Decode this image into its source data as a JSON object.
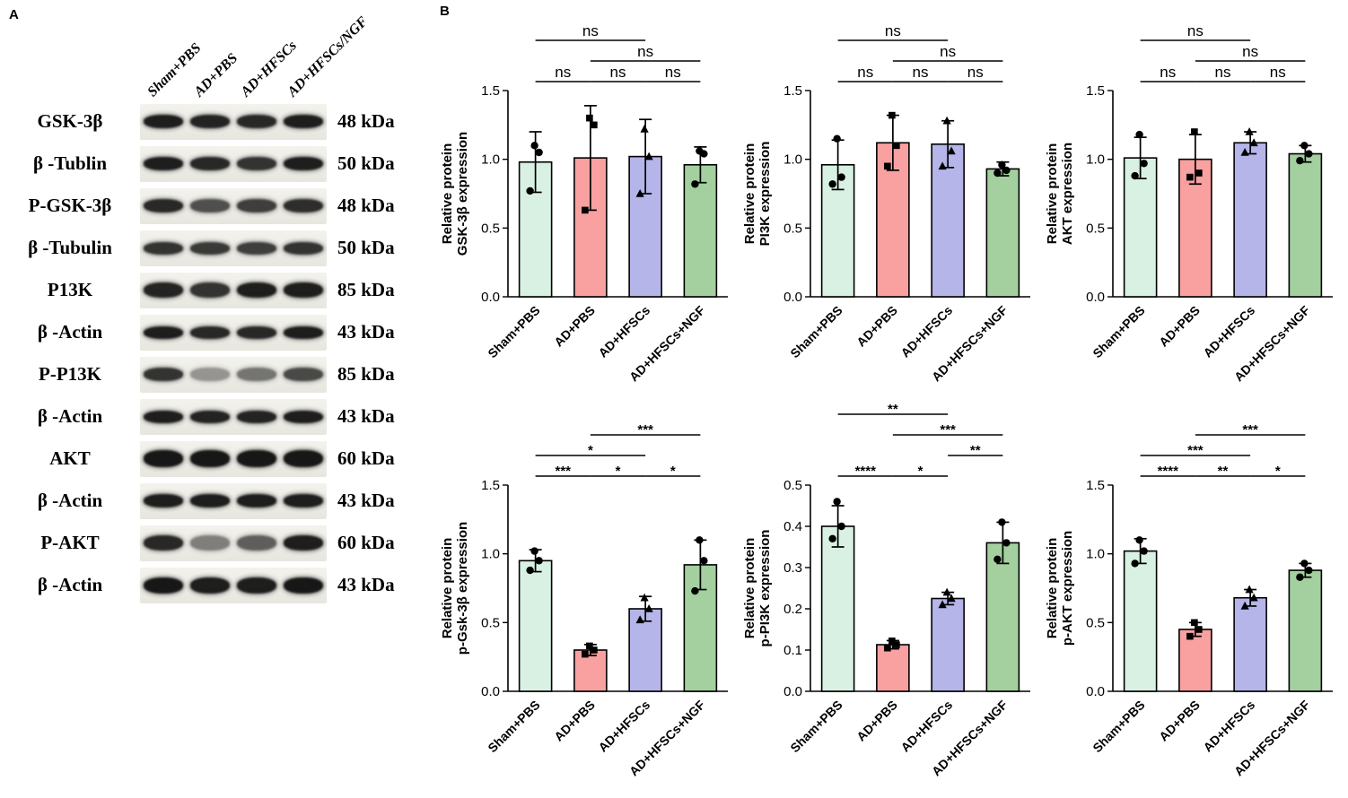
{
  "figure": {
    "panelA_label": "A",
    "panelB_label": "B"
  },
  "panelA": {
    "lane_headers": [
      "Sham+PBS",
      "AD+PBS",
      "AD+HFSCs",
      "AD+HFSCs/NGF"
    ],
    "rows": [
      {
        "protein": "GSK-3β",
        "kda": "48 kDa",
        "band_h": 15,
        "intensities": [
          0.95,
          0.92,
          0.9,
          0.95
        ]
      },
      {
        "protein": "β -Tublin",
        "kda": "50 kDa",
        "band_h": 15,
        "intensities": [
          0.95,
          0.9,
          0.85,
          0.95
        ]
      },
      {
        "protein": "P-GSK-3β",
        "kda": "48 kDa",
        "band_h": 15,
        "intensities": [
          0.9,
          0.72,
          0.8,
          0.88
        ]
      },
      {
        "protein": "β -Tubulin",
        "kda": "50 kDa",
        "band_h": 14,
        "intensities": [
          0.85,
          0.82,
          0.8,
          0.85
        ]
      },
      {
        "protein": "P13K",
        "kda": "85 kDa",
        "band_h": 17,
        "intensities": [
          0.92,
          0.85,
          0.95,
          0.95
        ]
      },
      {
        "protein": "β -Actin",
        "kda": "43 kDa",
        "band_h": 14,
        "intensities": [
          0.95,
          0.9,
          0.9,
          0.95
        ]
      },
      {
        "protein": "P-P13K",
        "kda": "85 kDa",
        "band_h": 15,
        "intensities": [
          0.85,
          0.4,
          0.55,
          0.75
        ]
      },
      {
        "protein": "β -Actin",
        "kda": "43 kDa",
        "band_h": 14,
        "intensities": [
          0.95,
          0.92,
          0.92,
          0.95
        ]
      },
      {
        "protein": "AKT",
        "kda": "60 kDa",
        "band_h": 19,
        "intensities": [
          0.98,
          0.98,
          0.98,
          0.98
        ]
      },
      {
        "protein": "β -Actin",
        "kda": "43 kDa",
        "band_h": 15,
        "intensities": [
          0.95,
          0.95,
          0.95,
          0.95
        ]
      },
      {
        "protein": "P-AKT",
        "kda": "60 kDa",
        "band_h": 17,
        "intensities": [
          0.9,
          0.5,
          0.65,
          0.95
        ]
      },
      {
        "protein": "β -Actin",
        "kda": "43 kDa",
        "band_h": 18,
        "intensities": [
          0.98,
          0.95,
          0.95,
          0.98
        ]
      }
    ]
  },
  "style": {
    "bar_fills": [
      "#d8f1e3",
      "#f9a0a0",
      "#b5b5e9",
      "#a3d09e"
    ],
    "bar_stroke": "#000000",
    "point_color": "#000000",
    "axis_color": "#000000",
    "markers": [
      "circle",
      "square",
      "triangle",
      "circle"
    ]
  },
  "chart_data": [
    {
      "id": "gsk3b-total",
      "type": "bar",
      "ylabel_line1": "Relative protein",
      "ylabel_line2": "GSK-3β expression",
      "ylim": [
        0,
        1.5
      ],
      "yticks": [
        0,
        0.5,
        1,
        1.5
      ],
      "ytick_labels": [
        "0.0",
        "0.5",
        "1.0",
        "1.5"
      ],
      "categories": [
        "Sham+PBS",
        "AD+PBS",
        "AD+HFSCs",
        "AD+HFSCs+NGF"
      ],
      "values": [
        0.98,
        1.01,
        1.02,
        0.96
      ],
      "errors": [
        0.22,
        0.38,
        0.27,
        0.13
      ],
      "points": [
        [
          0.77,
          1.05,
          1.1
        ],
        [
          0.63,
          1.25,
          1.3
        ],
        [
          0.75,
          1.02,
          1.22
        ],
        [
          0.82,
          1.04,
          1.06
        ]
      ],
      "sig": [
        {
          "from": 0,
          "to": 1,
          "label": "ns",
          "level": 1
        },
        {
          "from": 1,
          "to": 2,
          "label": "ns",
          "level": 1
        },
        {
          "from": 2,
          "to": 3,
          "label": "ns",
          "level": 1
        },
        {
          "from": 1,
          "to": 3,
          "label": "ns",
          "level": 2
        },
        {
          "from": 0,
          "to": 2,
          "label": "ns",
          "level": 3
        }
      ]
    },
    {
      "id": "pi3k-total",
      "type": "bar",
      "ylabel_line1": "Relative protein",
      "ylabel_line2": "PI3K expression",
      "ylim": [
        0,
        1.5
      ],
      "yticks": [
        0,
        0.5,
        1,
        1.5
      ],
      "ytick_labels": [
        "0.0",
        "0.5",
        "1.0",
        "1.5"
      ],
      "categories": [
        "Sham+PBS",
        "AD+PBS",
        "AD+HFSCs",
        "AD+HFSCs+NGF"
      ],
      "values": [
        0.96,
        1.12,
        1.11,
        0.93
      ],
      "errors": [
        0.18,
        0.2,
        0.17,
        0.05
      ],
      "points": [
        [
          0.82,
          0.87,
          1.15
        ],
        [
          0.95,
          1.1,
          1.32
        ],
        [
          0.95,
          1.06,
          1.28
        ],
        [
          0.9,
          0.92,
          0.96
        ]
      ],
      "sig": [
        {
          "from": 0,
          "to": 1,
          "label": "ns",
          "level": 1
        },
        {
          "from": 1,
          "to": 2,
          "label": "ns",
          "level": 1
        },
        {
          "from": 2,
          "to": 3,
          "label": "ns",
          "level": 1
        },
        {
          "from": 1,
          "to": 3,
          "label": "ns",
          "level": 2
        },
        {
          "from": 0,
          "to": 2,
          "label": "ns",
          "level": 3
        }
      ]
    },
    {
      "id": "akt-total",
      "type": "bar",
      "ylabel_line1": "Relative protein",
      "ylabel_line2": "AKT expression",
      "ylim": [
        0,
        1.5
      ],
      "yticks": [
        0,
        0.5,
        1,
        1.5
      ],
      "ytick_labels": [
        "0.0",
        "0.5",
        "1.0",
        "1.5"
      ],
      "categories": [
        "Sham+PBS",
        "AD+PBS",
        "AD+HFSCs",
        "AD+HFSCs+NGF"
      ],
      "values": [
        1.01,
        1.0,
        1.12,
        1.04
      ],
      "errors": [
        0.15,
        0.18,
        0.08,
        0.06
      ],
      "points": [
        [
          0.88,
          0.97,
          1.18
        ],
        [
          0.87,
          0.9,
          1.2
        ],
        [
          1.05,
          1.12,
          1.2
        ],
        [
          0.99,
          1.04,
          1.1
        ]
      ],
      "sig": [
        {
          "from": 0,
          "to": 1,
          "label": "ns",
          "level": 1
        },
        {
          "from": 1,
          "to": 2,
          "label": "ns",
          "level": 1
        },
        {
          "from": 2,
          "to": 3,
          "label": "ns",
          "level": 1
        },
        {
          "from": 1,
          "to": 3,
          "label": "ns",
          "level": 2
        },
        {
          "from": 0,
          "to": 2,
          "label": "ns",
          "level": 3
        }
      ]
    },
    {
      "id": "p-gsk3b",
      "type": "bar",
      "ylabel_line1": "Relative protein",
      "ylabel_line2": "p-Gsk-3β expression",
      "ylim": [
        0,
        1.5
      ],
      "yticks": [
        0,
        0.5,
        1,
        1.5
      ],
      "ytick_labels": [
        "0.0",
        "0.5",
        "1.0",
        "1.5"
      ],
      "categories": [
        "Sham+PBS",
        "AD+PBS",
        "AD+HFSCs",
        "AD+HFSCs+NGF"
      ],
      "values": [
        0.95,
        0.3,
        0.6,
        0.92
      ],
      "errors": [
        0.08,
        0.04,
        0.09,
        0.18
      ],
      "points": [
        [
          0.88,
          0.95,
          1.02
        ],
        [
          0.27,
          0.3,
          0.33
        ],
        [
          0.52,
          0.6,
          0.68
        ],
        [
          0.73,
          0.95,
          1.1
        ]
      ],
      "sig": [
        {
          "from": 0,
          "to": 1,
          "label": "***",
          "level": 1
        },
        {
          "from": 1,
          "to": 2,
          "label": "*",
          "level": 1
        },
        {
          "from": 2,
          "to": 3,
          "label": "*",
          "level": 1
        },
        {
          "from": 0,
          "to": 2,
          "label": "*",
          "level": 2
        },
        {
          "from": 1,
          "to": 3,
          "label": "***",
          "level": 3
        }
      ]
    },
    {
      "id": "p-pi3k",
      "type": "bar",
      "ylabel_line1": "Relative protein",
      "ylabel_line2": "p-PI3K expression",
      "ylim": [
        0,
        0.5
      ],
      "yticks": [
        0,
        0.1,
        0.2,
        0.3,
        0.4,
        0.5
      ],
      "ytick_labels": [
        "0.0",
        "0.1",
        "0.2",
        "0.3",
        "0.4",
        "0.5"
      ],
      "categories": [
        "Sham+PBS",
        "AD+PBS",
        "AD+HFSCs",
        "AD+HFSCs+NGF"
      ],
      "values": [
        0.4,
        0.113,
        0.225,
        0.36
      ],
      "errors": [
        0.05,
        0.01,
        0.015,
        0.05
      ],
      "points": [
        [
          0.37,
          0.4,
          0.46
        ],
        [
          0.105,
          0.113,
          0.122
        ],
        [
          0.21,
          0.225,
          0.24
        ],
        [
          0.32,
          0.36,
          0.41
        ]
      ],
      "sig": [
        {
          "from": 0,
          "to": 1,
          "label": "****",
          "level": 1
        },
        {
          "from": 1,
          "to": 2,
          "label": "*",
          "level": 1
        },
        {
          "from": 2,
          "to": 3,
          "label": "**",
          "level": 2
        },
        {
          "from": 1,
          "to": 3,
          "label": "***",
          "level": 3
        },
        {
          "from": 0,
          "to": 2,
          "label": "**",
          "level": 4
        }
      ]
    },
    {
      "id": "p-akt",
      "type": "bar",
      "ylabel_line1": "Relative protein",
      "ylabel_line2": "p-AKT expression",
      "ylim": [
        0,
        1.5
      ],
      "yticks": [
        0,
        0.5,
        1,
        1.5
      ],
      "ytick_labels": [
        "0.0",
        "0.5",
        "1.0",
        "1.5"
      ],
      "categories": [
        "Sham+PBS",
        "AD+PBS",
        "AD+HFSCs",
        "AD+HFSCs+NGF"
      ],
      "values": [
        1.02,
        0.45,
        0.68,
        0.88
      ],
      "errors": [
        0.09,
        0.05,
        0.06,
        0.05
      ],
      "points": [
        [
          0.93,
          1.02,
          1.1
        ],
        [
          0.4,
          0.45,
          0.5
        ],
        [
          0.62,
          0.68,
          0.74
        ],
        [
          0.83,
          0.88,
          0.93
        ]
      ],
      "sig": [
        {
          "from": 0,
          "to": 1,
          "label": "****",
          "level": 1
        },
        {
          "from": 1,
          "to": 2,
          "label": "**",
          "level": 1
        },
        {
          "from": 2,
          "to": 3,
          "label": "*",
          "level": 1
        },
        {
          "from": 0,
          "to": 2,
          "label": "***",
          "level": 2
        },
        {
          "from": 1,
          "to": 3,
          "label": "***",
          "level": 3
        }
      ]
    }
  ]
}
